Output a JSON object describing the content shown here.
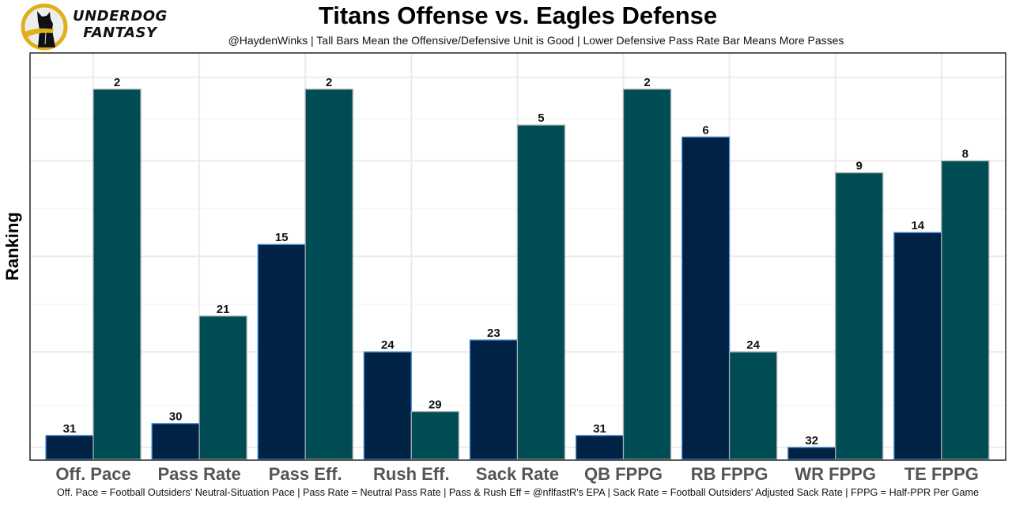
{
  "brand": {
    "name_line1": "UNDERDOG",
    "name_line2": "FANTASY",
    "logo_icon": "dog-silhouette-icon",
    "colors": {
      "ring": "#e0b01c",
      "dog": "#111111",
      "bg": "#eeeeee"
    }
  },
  "chart_data": {
    "type": "bar",
    "title": "Titans Offense vs. Eagles Defense",
    "subtitle": "@HaydenWinks | Tall Bars Mean the Offensive/Defensive Unit is Good | Lower Defensive Pass Rate Bar Means More Passes",
    "caption": "Off. Pace = Football Outsiders' Neutral-Situation Pace | Pass Rate = Neutral Pass Rate | Pass & Rush Eff = @nflfastR's EPA | Sack Rate = Football Outsiders' Adjusted Sack Rate | FPPG = Half-PPR Per Game",
    "xlabel": "",
    "ylabel": "Ranking",
    "y_axis_reversed": true,
    "y_tick_labels_shown": false,
    "grid": true,
    "legend": "none",
    "categories": [
      "Off. Pace",
      "Pass Rate",
      "Pass Eff.",
      "Rush Eff.",
      "Sack Rate",
      "QB FPPG",
      "RB FPPG",
      "WR FPPG",
      "TE FPPG"
    ],
    "series": [
      {
        "name": "Titans Offense",
        "color": "#002244",
        "outline": "#4b92db",
        "values": [
          31,
          30,
          15,
          24,
          23,
          31,
          6,
          32,
          14
        ]
      },
      {
        "name": "Eagles Defense",
        "color": "#004c54",
        "outline": "#a5acaf",
        "values": [
          2,
          21,
          2,
          29,
          5,
          2,
          24,
          9,
          8
        ]
      }
    ]
  }
}
